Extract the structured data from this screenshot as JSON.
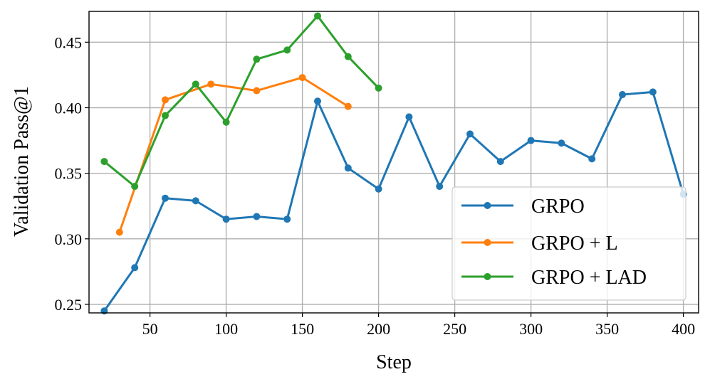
{
  "chart_data": {
    "type": "line",
    "xlabel": "Step",
    "ylabel": "Validation Pass@1",
    "xlim": [
      10,
      410
    ],
    "ylim": [
      0.2435,
      0.4735
    ],
    "xticks": [
      50,
      100,
      150,
      200,
      250,
      300,
      350,
      400
    ],
    "yticks": [
      0.25,
      0.3,
      0.35,
      0.4,
      0.45
    ],
    "xtick_labels": [
      "50",
      "100",
      "150",
      "200",
      "250",
      "300",
      "350",
      "400"
    ],
    "ytick_labels": [
      "0.25",
      "0.30",
      "0.35",
      "0.40",
      "0.45"
    ],
    "grid": true,
    "legend_position": "lower right",
    "series": [
      {
        "name": "GRPO",
        "color": "#1f77b4",
        "marker": "circle",
        "x": [
          20,
          40,
          60,
          80,
          100,
          120,
          140,
          160,
          180,
          200,
          220,
          240,
          260,
          280,
          300,
          320,
          340,
          360,
          380,
          400
        ],
        "y": [
          0.245,
          0.278,
          0.331,
          0.329,
          0.315,
          0.317,
          0.315,
          0.405,
          0.354,
          0.338,
          0.393,
          0.34,
          0.38,
          0.359,
          0.375,
          0.373,
          0.361,
          0.41,
          0.412,
          0.334
        ]
      },
      {
        "name": "GRPO + L",
        "color": "#ff7f0e",
        "marker": "circle",
        "x": [
          30,
          60,
          90,
          120,
          150,
          180
        ],
        "y": [
          0.305,
          0.406,
          0.418,
          0.413,
          0.423,
          0.401
        ]
      },
      {
        "name": "GRPO + LAD",
        "color": "#2ca02c",
        "marker": "circle",
        "x": [
          20,
          40,
          60,
          80,
          100,
          120,
          140,
          160,
          180,
          200
        ],
        "y": [
          0.359,
          0.34,
          0.394,
          0.418,
          0.389,
          0.437,
          0.444,
          0.47,
          0.439,
          0.415
        ]
      }
    ]
  }
}
